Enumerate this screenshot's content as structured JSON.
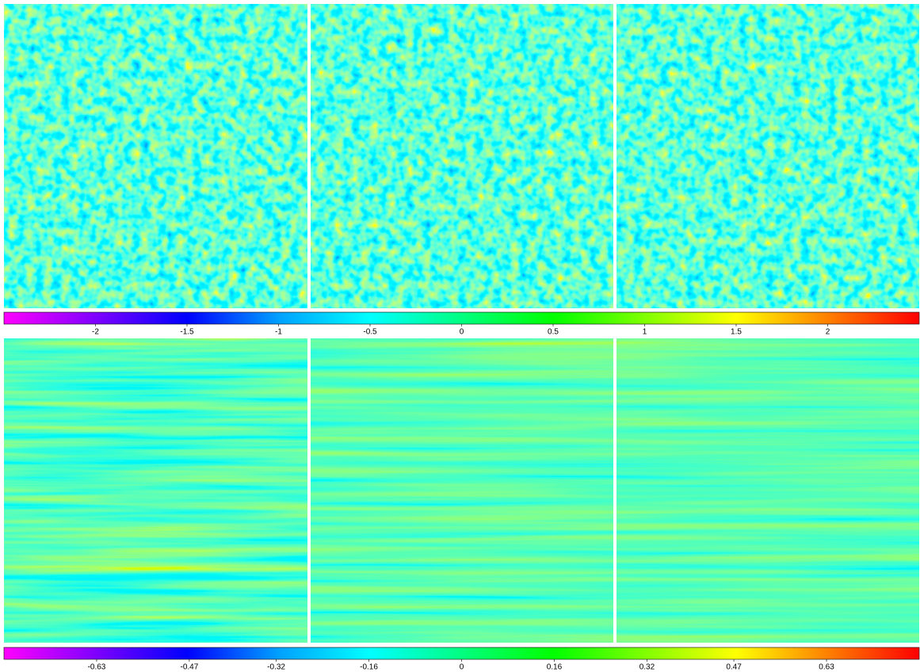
{
  "colormap": [
    "#ff00ff",
    "#7f00ff",
    "#0000ff",
    "#00a0ff",
    "#00ffff",
    "#00ff80",
    "#00ff00",
    "#80ff00",
    "#ffff00",
    "#ff8000",
    "#ff0000"
  ],
  "colorbars": [
    {
      "range": [
        -2.5,
        2.5
      ],
      "ticks": [
        -2,
        -1.5,
        -1,
        -0.5,
        0,
        0.5,
        1,
        1.5,
        2
      ]
    },
    {
      "range": [
        -0.79,
        0.79
      ],
      "ticks": [
        -0.63,
        -0.47,
        -0.32,
        -0.16,
        0,
        0.16,
        0.32,
        0.47,
        0.63
      ]
    }
  ]
}
